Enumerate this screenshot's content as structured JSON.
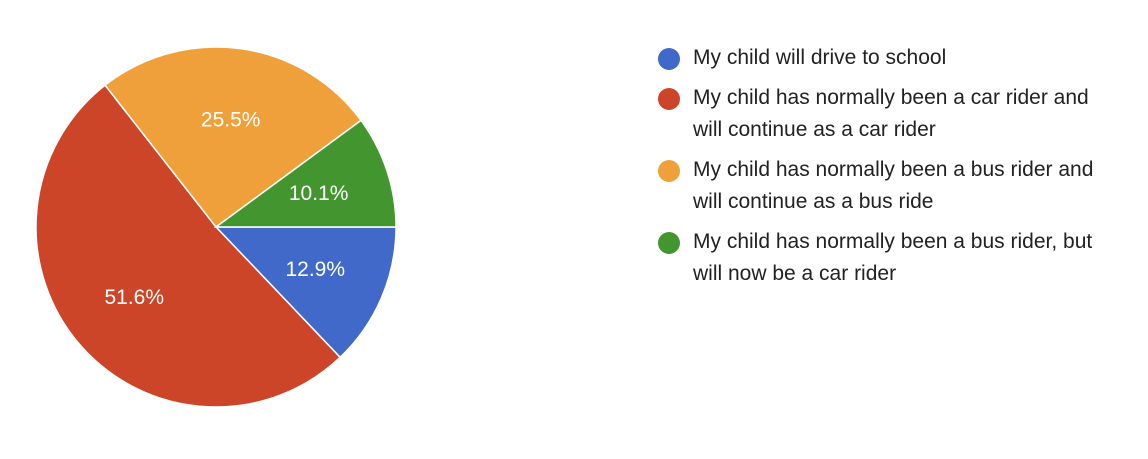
{
  "chart_data": {
    "type": "pie",
    "title": "",
    "legend_position": "right",
    "slices": [
      {
        "label": "My child will drive to school",
        "value": 12.9,
        "display": "12.9%",
        "color": "#4169C9"
      },
      {
        "label": "My child has normally been a car rider and will continue as a car rider",
        "value": 51.6,
        "display": "51.6%",
        "color": "#CC4528"
      },
      {
        "label": "My child has normally been a bus rider and will continue as a bus ride",
        "value": 25.5,
        "display": "25.5%",
        "color": "#F0A03B"
      },
      {
        "label": "My child has normally been a bus rider, but will now be a car rider",
        "value": 10.1,
        "display": "10.1%",
        "color": "#43962F"
      }
    ]
  }
}
